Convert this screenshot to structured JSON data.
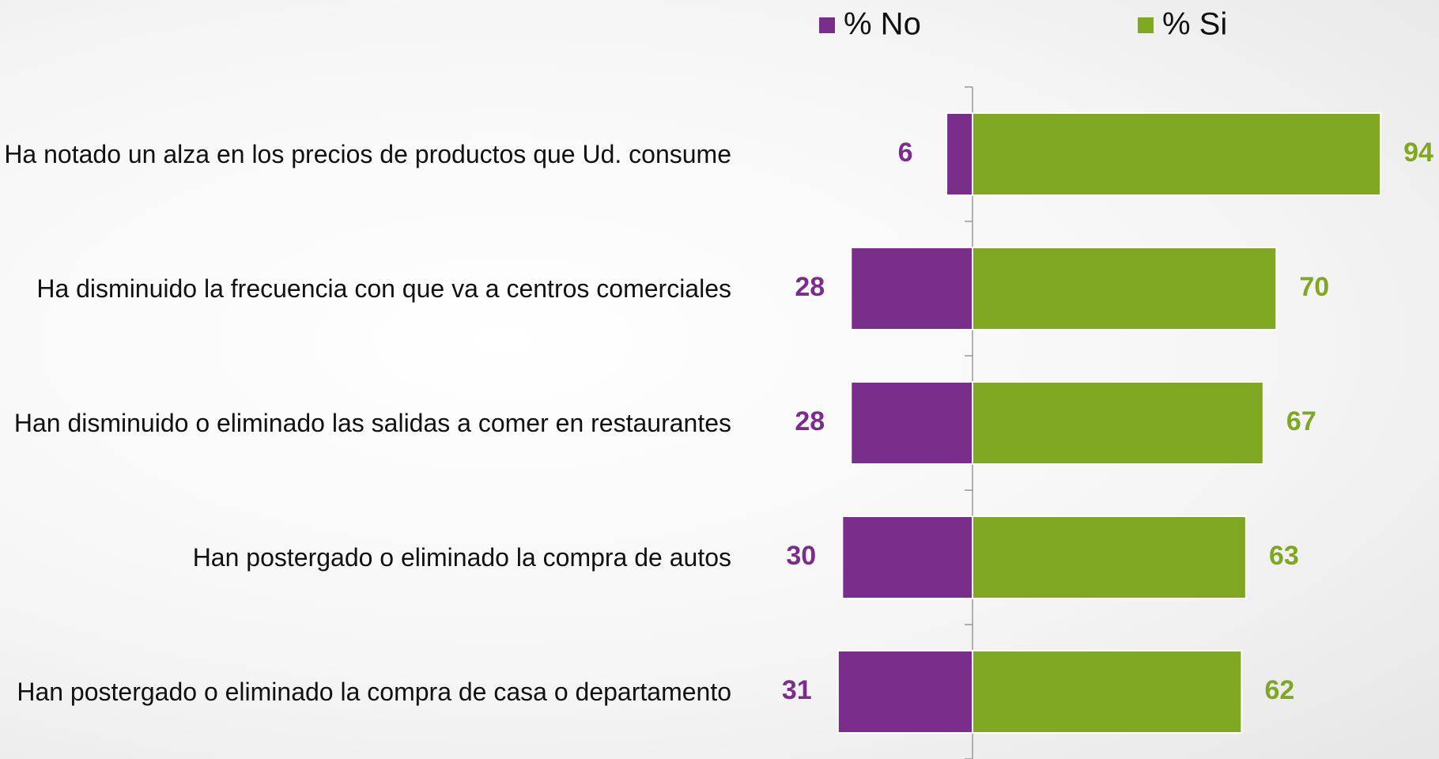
{
  "chart_data": {
    "type": "bar",
    "orientation": "horizontal",
    "diverging": true,
    "legend": "top",
    "categories": [
      "Ha notado un alza en los precios de productos que Ud. consume",
      "Ha disminuido la frecuencia con que va a centros comerciales",
      "Han disminuido o eliminado las salidas a comer en restaurantes",
      "Han postergado o eliminado la compra de autos",
      "Han postergado o eliminado la compra de casa o departamento"
    ],
    "series": [
      {
        "name": "% No",
        "color": "#7b2d8b",
        "values": [
          6,
          28,
          28,
          30,
          31
        ]
      },
      {
        "name": "% Si",
        "color": "#7fa722",
        "values": [
          94,
          70,
          67,
          63,
          62
        ]
      }
    ]
  }
}
